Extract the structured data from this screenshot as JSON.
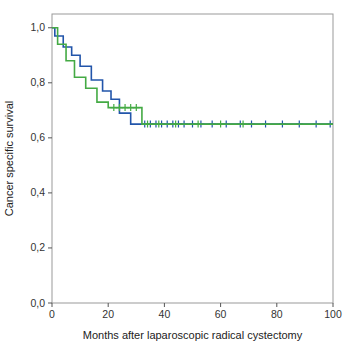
{
  "chart_data": {
    "type": "line",
    "xlabel": "Months after laparoscopic radical cystectomy",
    "ylabel": "Cancer specific survival",
    "series": [
      {
        "type": "step",
        "color": "#2255aa",
        "x": [
          0,
          1,
          1,
          4,
          4,
          7,
          7,
          10,
          10,
          14,
          14,
          18,
          18,
          21,
          21,
          24,
          24,
          28,
          28,
          32,
          32,
          100
        ],
        "values": [
          1.0,
          1.0,
          0.97,
          0.97,
          0.93,
          0.93,
          0.9,
          0.9,
          0.86,
          0.86,
          0.81,
          0.81,
          0.77,
          0.77,
          0.74,
          0.74,
          0.69,
          0.69,
          0.65,
          0.65,
          0.65,
          0.65
        ]
      },
      {
        "type": "scatter",
        "marker": "+",
        "color": "#2255aa",
        "x": [
          33,
          35,
          37,
          39,
          41,
          43,
          45,
          47,
          50,
          53,
          57,
          62,
          67,
          71,
          76,
          82,
          88,
          94,
          99
        ],
        "values": [
          0.65,
          0.65,
          0.65,
          0.65,
          0.65,
          0.65,
          0.65,
          0.65,
          0.65,
          0.65,
          0.65,
          0.65,
          0.65,
          0.65,
          0.65,
          0.65,
          0.65,
          0.65,
          0.65
        ]
      },
      {
        "type": "step",
        "color": "#44aa44",
        "x": [
          0,
          2,
          2,
          5,
          5,
          8,
          8,
          12,
          12,
          16,
          16,
          20,
          20,
          25,
          25,
          32,
          32,
          36,
          36,
          100
        ],
        "values": [
          1.0,
          1.0,
          0.94,
          0.94,
          0.88,
          0.88,
          0.82,
          0.82,
          0.78,
          0.78,
          0.73,
          0.73,
          0.71,
          0.71,
          0.71,
          0.71,
          0.65,
          0.65,
          0.65,
          0.65
        ]
      },
      {
        "type": "scatter",
        "marker": "+",
        "color": "#44aa44",
        "x": [
          22,
          24,
          26,
          28,
          30,
          34,
          38,
          44,
          52,
          60,
          68
        ],
        "values": [
          0.71,
          0.71,
          0.71,
          0.71,
          0.71,
          0.65,
          0.65,
          0.65,
          0.65,
          0.65,
          0.65
        ]
      }
    ],
    "xlim": [
      0,
      100
    ],
    "ylim": [
      0.0,
      1.05
    ],
    "xticks": [
      0,
      20,
      40,
      60,
      80,
      100
    ],
    "yticks": [
      {
        "value": 0.0,
        "label": "0,0"
      },
      {
        "value": 0.2,
        "label": "0,2"
      },
      {
        "value": 0.4,
        "label": "0,4"
      },
      {
        "value": 0.6,
        "label": "0,6"
      },
      {
        "value": 0.8,
        "label": "0,8"
      },
      {
        "value": 1.0,
        "label": "1,0"
      }
    ],
    "grid": false
  }
}
